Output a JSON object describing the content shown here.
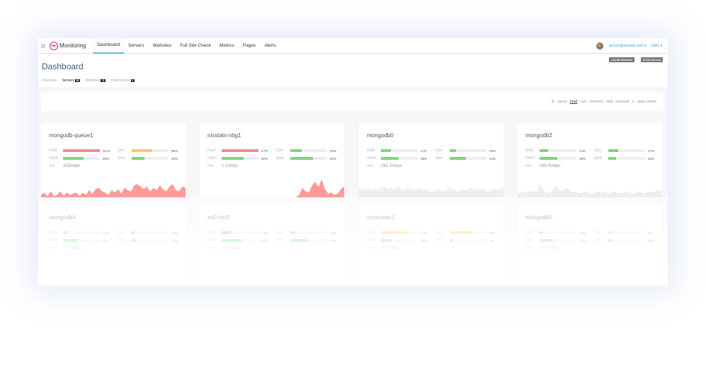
{
  "nav": {
    "logo_mark": "360",
    "logo_text": "Monitoring",
    "items": [
      "Dashboard",
      "Servers",
      "Websites",
      "Full Site Check",
      "Metrics",
      "Pages",
      "Alerts"
    ],
    "active": "Dashboard",
    "user_email": "vincent@nixstats.com ▾",
    "language": "ENG ▾"
  },
  "header": {
    "title": "Dashboard",
    "badges": [
      "11/2150 Websites",
      "97/225 Servers"
    ],
    "subtabs": [
      {
        "label": "Overview"
      },
      {
        "label": "Servers",
        "count": "98"
      },
      {
        "label": "Websites",
        "count": "11"
      },
      {
        "label": "Dashboards",
        "count": "2"
      }
    ]
  },
  "sort": {
    "icon": "sort-icon",
    "options": [
      "name",
      "load",
      "cpu",
      "memory",
      "hdd",
      "network"
    ],
    "selected": "load",
    "alerts_label": "open alerts"
  },
  "colors": {
    "red": "#f08c8c",
    "yellow": "#fbc86a",
    "green": "#80d480",
    "spark_red": "#fd9a9a",
    "spark_gray": "#eeeeee"
  },
  "labels": {
    "load": "load",
    "mem": "mem",
    "cpu": "cpu",
    "disk": "disk",
    "net": "net"
  },
  "servers": [
    {
      "name": "mongodb-queue1",
      "load": "18.17",
      "load_fill": 100,
      "load_color": "red",
      "cpu": "56%",
      "cpu_fill": 56,
      "cpu_color": "yellow",
      "mem": "55%",
      "mem_fill": 55,
      "disk": "34%",
      "disk_fill": 34,
      "net": "423mbps",
      "spark": "red",
      "history": [
        2,
        4,
        1,
        5,
        1,
        2,
        5,
        1,
        4,
        2,
        3,
        4,
        1,
        4,
        2,
        6,
        3,
        7,
        8,
        5,
        4,
        2,
        6,
        4,
        7,
        3,
        8,
        6,
        5,
        10,
        11,
        9,
        7,
        9,
        5,
        8,
        6,
        10,
        7,
        5,
        9,
        11,
        6,
        5,
        9,
        8
      ]
    },
    {
      "name": "nixstats-nbg1",
      "load": "5.79",
      "load_fill": 100,
      "load_color": "red",
      "cpu": "30%",
      "cpu_fill": 30,
      "cpu_color": "green",
      "mem": "60%",
      "mem_fill": 60,
      "disk": "62%",
      "disk_fill": 62,
      "net": "1.1mbps",
      "spark": "red",
      "history": [
        0,
        0,
        0,
        0,
        0,
        0,
        0,
        0,
        0,
        0,
        0,
        0,
        0,
        0,
        0,
        0,
        0,
        0,
        0,
        0,
        0,
        0,
        0,
        0,
        0,
        0,
        0,
        0,
        0,
        0,
        0,
        2,
        8,
        5,
        4,
        10,
        13,
        9,
        15,
        7,
        3,
        4,
        2,
        3,
        7,
        9
      ]
    },
    {
      "name": "mongodb0",
      "load": "4.27",
      "load_fill": 27,
      "load_color": "green",
      "cpu": "18%",
      "cpu_fill": 18,
      "cpu_color": "green",
      "mem": "48%",
      "mem_fill": 48,
      "disk": "44%",
      "disk_fill": 44,
      "net": "261.7mbps",
      "spark": "gray",
      "history": [
        6,
        7,
        5,
        8,
        6,
        7,
        6,
        8,
        9,
        7,
        8,
        6,
        9,
        7,
        6,
        8,
        7,
        6,
        7,
        8,
        6,
        7,
        5,
        4,
        6,
        7,
        5,
        6,
        8,
        7,
        6,
        5,
        7,
        6,
        7,
        8,
        6,
        7,
        6,
        7,
        5,
        6,
        7,
        6,
        7,
        8
      ]
    },
    {
      "name": "mongodb2",
      "load": "3.91",
      "load_fill": 24,
      "load_color": "green",
      "cpu": "27%",
      "cpu_fill": 27,
      "cpu_color": "green",
      "mem": "49%",
      "mem_fill": 49,
      "disk": "22%",
      "disk_fill": 22,
      "net": "169.9mbps",
      "spark": "gray",
      "history": [
        3,
        4,
        5,
        4,
        6,
        5,
        4,
        11,
        6,
        4,
        3,
        7,
        10,
        6,
        5,
        8,
        6,
        4,
        5,
        3,
        4,
        5,
        4,
        3,
        4,
        5,
        4,
        5,
        3,
        4,
        5,
        4,
        3,
        4,
        5,
        4,
        3,
        4,
        5,
        3,
        4,
        5,
        4,
        5,
        6,
        5
      ]
    },
    {
      "name": "mongodb4",
      "load": "3.47",
      "load_fill": 10,
      "load_color": "green",
      "cpu": "10%",
      "cpu_fill": 10,
      "cpu_color": "green",
      "mem": "41%",
      "mem_fill": 41,
      "disk": "12%",
      "disk_fill": 12,
      "net": "72.4mbps",
      "spark": "gray",
      "history": []
    },
    {
      "name": "es0-hel3",
      "load": "3.05",
      "load_fill": 25,
      "load_color": "green",
      "cpu": "14%",
      "cpu_fill": 14,
      "cpu_color": "green",
      "mem": "53%",
      "mem_fill": 53,
      "disk": "47%",
      "disk_fill": 47,
      "net": "54.3mbps",
      "spark": "gray",
      "history": []
    },
    {
      "name": "consumer1",
      "load": "2.87",
      "load_fill": 72,
      "load_color": "yellow",
      "cpu": "62%",
      "cpu_fill": 62,
      "cpu_color": "yellow",
      "mem": "29%",
      "mem_fill": 29,
      "disk": "7%",
      "disk_fill": 7,
      "net": "107mbps",
      "spark": "gray",
      "history": []
    },
    {
      "name": "mongodb5",
      "load": "2.75",
      "load_fill": 7,
      "load_color": "green",
      "cpu": "6%",
      "cpu_fill": 6,
      "cpu_color": "green",
      "mem": "36%",
      "mem_fill": 36,
      "disk": "10%",
      "disk_fill": 10,
      "net": "95.6mbps",
      "spark": "gray",
      "history": []
    }
  ]
}
